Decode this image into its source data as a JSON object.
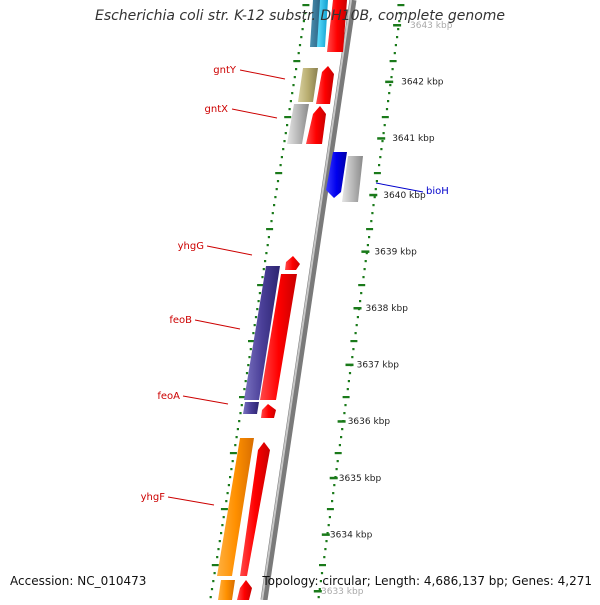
{
  "title": "Escherichia coli str. K-12 substr. DH10B, complete genome",
  "accession_text": "Accession: NC_010473",
  "topology_text": "Topology: circular; Length: 4,686,137 bp; Genes: 4,271",
  "kbp_ticks": [
    "3643 kbp",
    "3642 kbp",
    "3641 kbp",
    "3640 kbp",
    "3639 kbp",
    "3638 kbp",
    "3637 kbp",
    "3636 kbp",
    "3635 kbp",
    "3634 kbp",
    "3633 kbp"
  ],
  "gene_labels": {
    "gntY": "gntY",
    "gntX": "gntX",
    "bioH": "bioH",
    "yhgG": "yhgG",
    "feoB": "feoB",
    "feoA": "feoA",
    "yhgF": "yhgF"
  },
  "colors": {
    "label_red": "#cc0000",
    "label_blue": "#0000cc",
    "cds_red": "#ff0000",
    "tick_green": "#1a7a1a"
  }
}
